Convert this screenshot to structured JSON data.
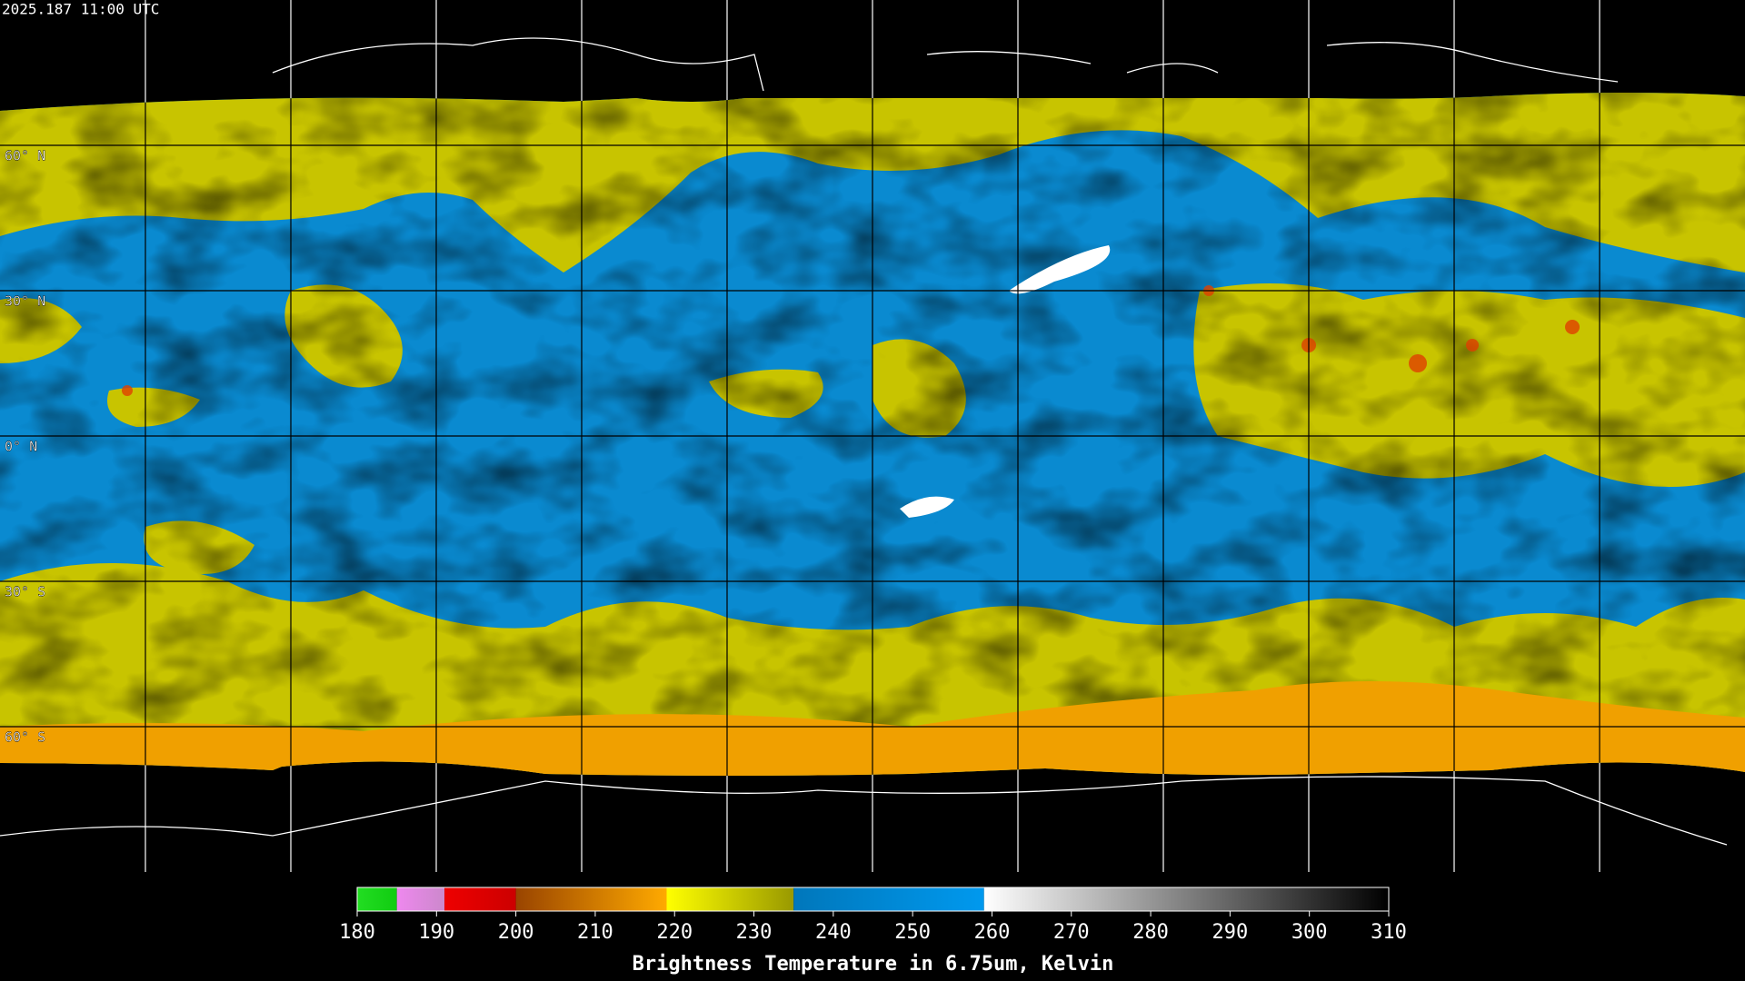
{
  "header": {
    "timestamp": "2025.187 11:00 UTC"
  },
  "map": {
    "lat_range": [
      90,
      -90
    ],
    "latitudes": [
      {
        "value": 60,
        "label": "60° N"
      },
      {
        "value": 30,
        "label": "30° N"
      },
      {
        "value": 0,
        "label": "0° N"
      },
      {
        "value": -30,
        "label": "30° S"
      },
      {
        "value": -60,
        "label": "60° S"
      }
    ]
  },
  "colorbar": {
    "range": [
      180,
      310
    ],
    "ticks": [
      180,
      190,
      200,
      210,
      220,
      230,
      240,
      250,
      260,
      270,
      280,
      290,
      300,
      310
    ],
    "label": "Brightness Temperature in 6.75um, Kelvin",
    "segments": [
      {
        "from": 180,
        "to": 185,
        "colors": [
          "#22dd22",
          "#11cc11"
        ]
      },
      {
        "from": 185,
        "to": 191,
        "colors": [
          "#ee88ee",
          "#cc88cc"
        ]
      },
      {
        "from": 191,
        "to": 200,
        "colors": [
          "#ee0000",
          "#cc0000"
        ]
      },
      {
        "from": 200,
        "to": 219,
        "colors": [
          "#994400",
          "#ffaa00"
        ]
      },
      {
        "from": 219,
        "to": 235,
        "colors": [
          "#ffff00",
          "#999900"
        ]
      },
      {
        "from": 235,
        "to": 259,
        "colors": [
          "#0077bb",
          "#0099ee"
        ]
      },
      {
        "from": 259,
        "to": 310,
        "colors": [
          "#ffffff",
          "#000000"
        ]
      }
    ]
  }
}
